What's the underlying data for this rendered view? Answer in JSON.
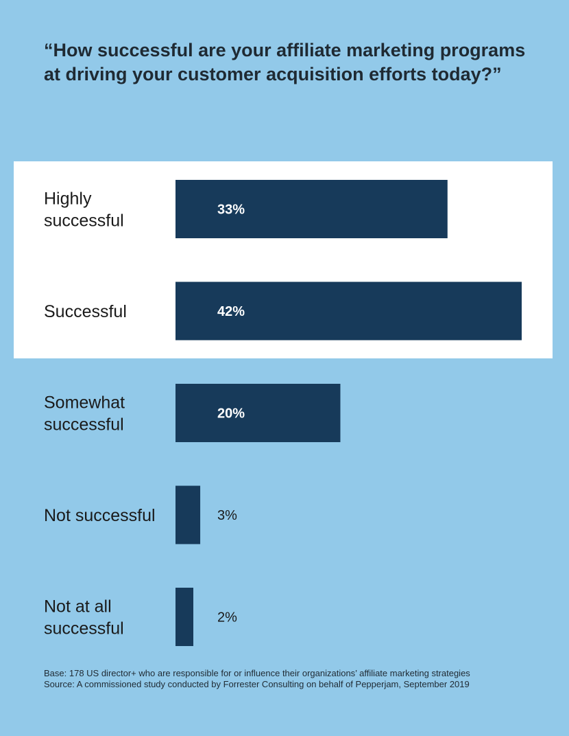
{
  "title": "“How successful are your affiliate marketing programs at driving your customer acquisition efforts today?”",
  "chart_data": {
    "type": "bar",
    "orientation": "horizontal",
    "categories": [
      [
        "Highly",
        "successful"
      ],
      [
        "Successful"
      ],
      [
        "Somewhat",
        "successful"
      ],
      [
        "Not successful"
      ],
      [
        "Not at all",
        "successful"
      ]
    ],
    "values": [
      33,
      42,
      20,
      3,
      2
    ],
    "value_labels": [
      "33%",
      "42%",
      "20%",
      "3%",
      "2%"
    ],
    "highlighted_categories": [
      0,
      1
    ],
    "xlim": [
      0,
      42
    ],
    "grid": false,
    "legend": "none"
  },
  "colors": {
    "background": "#92c9e9",
    "highlight": "#ffffff",
    "bar": "#173a5a",
    "label_inside": "#ffffff",
    "label_outside": "#1a1a1a"
  },
  "footnote": {
    "base": "Base: 178 US director+ who are responsible for or influence their organizations’ affiliate marketing strategies",
    "source": "Source: A commissioned study conducted by Forrester Consulting on behalf of Pepperjam, September 2019"
  }
}
